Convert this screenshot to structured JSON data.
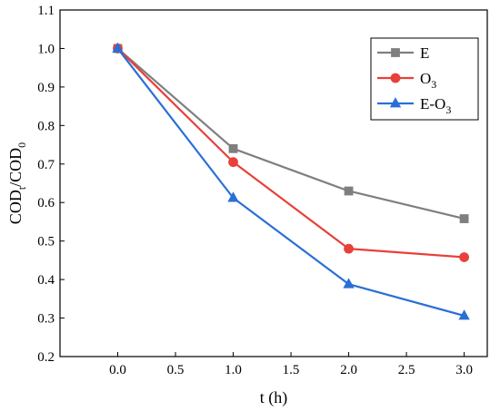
{
  "chart_data": {
    "type": "line",
    "xlabel": "t (h)",
    "ylabel_main": "COD",
    "ylabel_sub_t": "t",
    "ylabel_slash": "/COD",
    "ylabel_sub_0": "0",
    "xlim": [
      -0.5,
      3.2
    ],
    "ylim": [
      0.2,
      1.1
    ],
    "x_ticks": [
      "0.0",
      "0.5",
      "1.0",
      "1.5",
      "2.0",
      "2.5",
      "3.0"
    ],
    "x_tick_values": [
      0.0,
      0.5,
      1.0,
      1.5,
      2.0,
      2.5,
      3.0
    ],
    "y_ticks": [
      "0.2",
      "0.3",
      "0.4",
      "0.5",
      "0.6",
      "0.7",
      "0.8",
      "0.9",
      "1.0",
      "1.1"
    ],
    "y_tick_values": [
      0.2,
      0.3,
      0.4,
      0.5,
      0.6,
      0.7,
      0.8,
      0.9,
      1.0,
      1.1
    ],
    "x": [
      0.0,
      1.0,
      2.0,
      3.0
    ],
    "series": [
      {
        "name": "E",
        "legend_main": "E",
        "legend_sub": "",
        "values": [
          1.0,
          0.74,
          0.63,
          0.558
        ],
        "color": "#7f7f7f",
        "marker": "square"
      },
      {
        "name": "O3",
        "legend_main": "O",
        "legend_sub": "3",
        "values": [
          1.0,
          0.705,
          0.48,
          0.458
        ],
        "color": "#e8403a",
        "marker": "circle"
      },
      {
        "name": "E-O3",
        "legend_main": "E-O",
        "legend_sub": "3",
        "values": [
          1.0,
          0.612,
          0.388,
          0.306
        ],
        "color": "#2a6fd6",
        "marker": "triangle"
      }
    ],
    "legend_position": "top-right",
    "grid": false
  }
}
